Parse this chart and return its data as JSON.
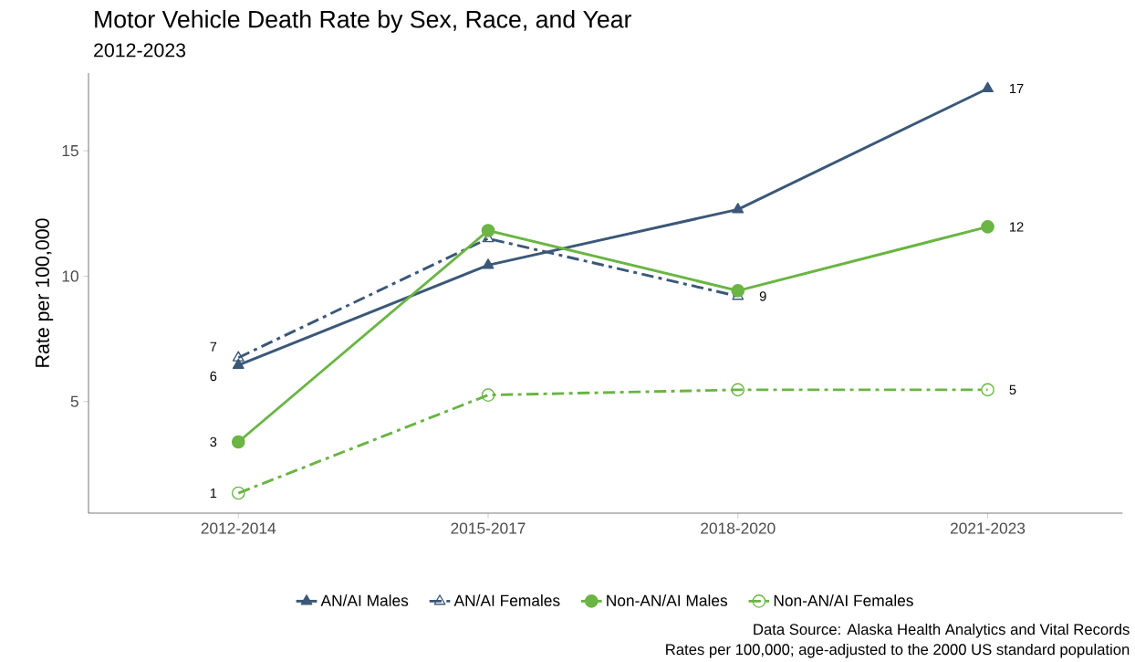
{
  "chart_data": {
    "type": "line",
    "title": "Motor Vehicle Death Rate by Sex, Race, and Year",
    "subtitle": "2012-2023",
    "ylabel": "Rate per 100,000",
    "categories": [
      "2012-2014",
      "2015-2017",
      "2018-2020",
      "2021-2023"
    ],
    "series": [
      {
        "name": "AN/AI Males",
        "color": "#3b5878",
        "values": [
          6.45,
          10.44,
          12.66,
          17.48
        ],
        "marker": "triangle",
        "line_style": "solid",
        "value_labels": [
          "6",
          null,
          null,
          "17"
        ]
      },
      {
        "name": "AN/AI Females",
        "color": "#3b5878",
        "values": [
          6.75,
          11.5,
          9.2,
          null
        ],
        "marker": "triangle-open",
        "line_style": "dashed",
        "value_labels": [
          "7",
          null,
          "9",
          null
        ]
      },
      {
        "name": "Non-AN/AI Males",
        "color": "#6ab544",
        "values": [
          3.39,
          11.82,
          9.42,
          11.97
        ],
        "marker": "circle",
        "line_style": "solid",
        "value_labels": [
          "3",
          null,
          null,
          "12"
        ]
      },
      {
        "name": "Non-AN/AI Females",
        "color": "#6ab544",
        "values": [
          1.35,
          5.26,
          5.47,
          5.47
        ],
        "marker": "circle-open",
        "line_style": "dashed",
        "value_labels": [
          "1",
          null,
          null,
          "5"
        ]
      }
    ],
    "ylim": [
      0.55,
      18.1
    ],
    "yticks": [
      5,
      10,
      15
    ],
    "grid": false,
    "legend": "bottom",
    "annotations": [
      "Data Source: Alaska Health Analytics and Vital Records",
      "Rates per 100,000; age-adjusted to the 2000 US standard population"
    ]
  }
}
